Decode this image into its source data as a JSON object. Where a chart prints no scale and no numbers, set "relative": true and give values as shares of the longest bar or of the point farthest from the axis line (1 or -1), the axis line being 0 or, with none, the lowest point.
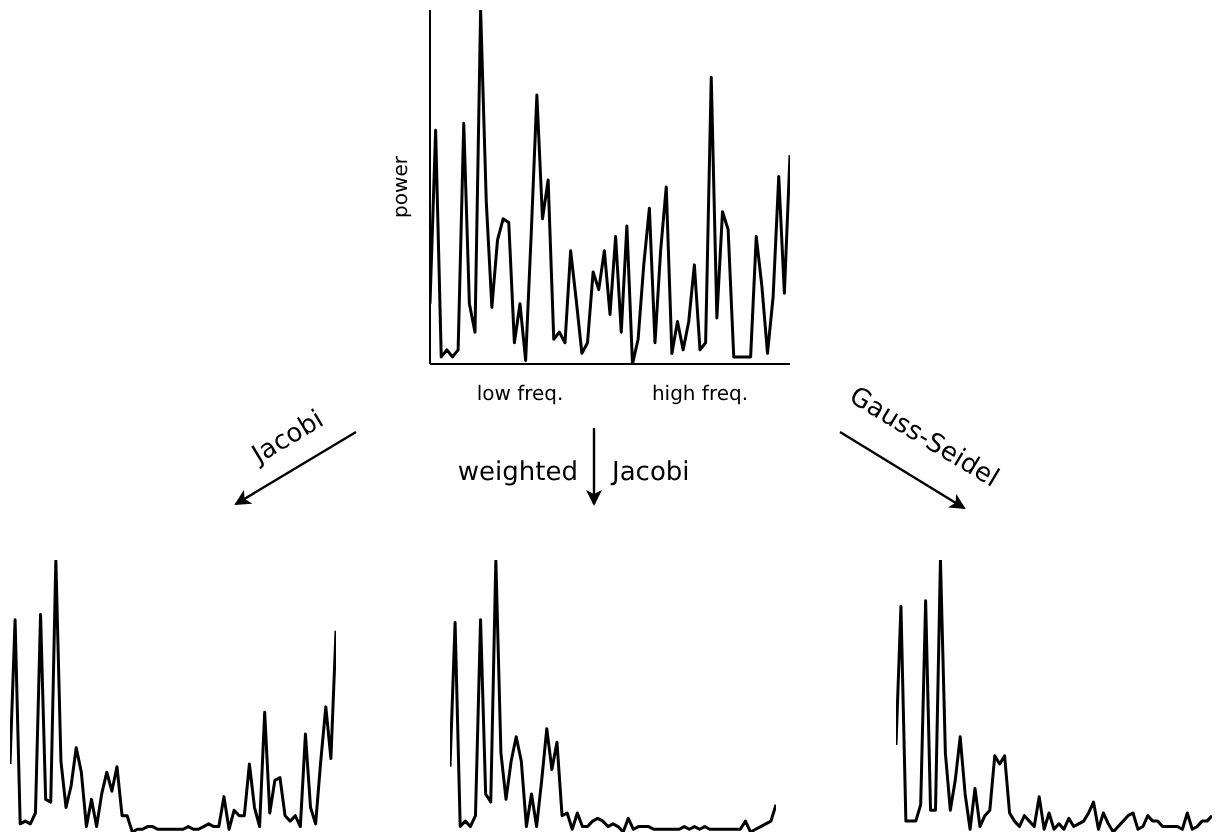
{
  "chart_data": [
    {
      "type": "line",
      "relative": true,
      "ylabel": "power",
      "annotations": [
        "low freq.",
        "high freq."
      ],
      "color": "#000000",
      "marker": "none",
      "categories": [
        null,
        null,
        null,
        null,
        null,
        null,
        null,
        null,
        null,
        null,
        null,
        null,
        null,
        null,
        null,
        null,
        null,
        null,
        null,
        null,
        null,
        null,
        null,
        null,
        null,
        null,
        null,
        null,
        null,
        null,
        null,
        null,
        null,
        null,
        null,
        null,
        null,
        null,
        null,
        null,
        null,
        null,
        null,
        null,
        null,
        null,
        null,
        null,
        null,
        null,
        null,
        null,
        null,
        null,
        null,
        null,
        null,
        null,
        null,
        null,
        null,
        null,
        null,
        null,
        null
      ],
      "values": [
        0.17,
        0.66,
        0.02,
        0.04,
        0.02,
        0.04,
        0.68,
        0.17,
        0.09,
        1.0,
        0.46,
        0.16,
        0.35,
        0.41,
        0.4,
        0.06,
        0.17,
        0.01,
        0.37,
        0.76,
        0.41,
        0.52,
        0.07,
        0.09,
        0.06,
        0.32,
        0.18,
        0.03,
        0.06,
        0.26,
        0.21,
        0.32,
        0.14,
        0.36,
        0.09,
        0.39,
        0.0,
        0.07,
        0.28,
        0.44,
        0.06,
        0.32,
        0.5,
        0.03,
        0.12,
        0.04,
        0.12,
        0.28,
        0.04,
        0.06,
        0.81,
        0.13,
        0.43,
        0.38,
        0.02,
        0.02,
        0.02,
        0.02,
        0.36,
        0.22,
        0.03,
        0.19,
        0.53,
        0.2,
        0.59
      ]
    },
    {
      "type": "line",
      "relative": true,
      "annotations": [
        "Jacobi"
      ],
      "color": "#000000",
      "marker": "none",
      "categories": [
        null,
        null,
        null,
        null,
        null,
        null,
        null,
        null,
        null,
        null,
        null,
        null,
        null,
        null,
        null,
        null,
        null,
        null,
        null,
        null,
        null,
        null,
        null,
        null,
        null,
        null,
        null,
        null,
        null,
        null,
        null,
        null,
        null,
        null,
        null,
        null,
        null,
        null,
        null,
        null,
        null,
        null,
        null,
        null,
        null,
        null,
        null,
        null,
        null,
        null,
        null,
        null,
        null,
        null,
        null,
        null,
        null,
        null,
        null,
        null,
        null,
        null,
        null,
        null,
        null
      ],
      "values": [
        0.25,
        0.78,
        0.03,
        0.04,
        0.03,
        0.07,
        0.8,
        0.12,
        0.11,
        1.0,
        0.26,
        0.09,
        0.17,
        0.31,
        0.22,
        0.02,
        0.12,
        0.02,
        0.14,
        0.22,
        0.15,
        0.24,
        0.06,
        0.06,
        0.0,
        0.01,
        0.01,
        0.02,
        0.02,
        0.01,
        0.01,
        0.01,
        0.01,
        0.01,
        0.01,
        0.02,
        0.01,
        0.01,
        0.02,
        0.03,
        0.02,
        0.02,
        0.13,
        0.01,
        0.08,
        0.06,
        0.06,
        0.25,
        0.09,
        0.02,
        0.44,
        0.07,
        0.19,
        0.2,
        0.06,
        0.04,
        0.06,
        0.02,
        0.36,
        0.09,
        0.03,
        0.26,
        0.46,
        0.27,
        0.74
      ]
    },
    {
      "type": "line",
      "relative": true,
      "annotations": [
        "weighted",
        "Jacobi"
      ],
      "color": "#000000",
      "marker": "none",
      "categories": [
        null,
        null,
        null,
        null,
        null,
        null,
        null,
        null,
        null,
        null,
        null,
        null,
        null,
        null,
        null,
        null,
        null,
        null,
        null,
        null,
        null,
        null,
        null,
        null,
        null,
        null,
        null,
        null,
        null,
        null,
        null,
        null,
        null,
        null,
        null,
        null,
        null,
        null,
        null,
        null,
        null,
        null,
        null,
        null,
        null,
        null,
        null,
        null,
        null,
        null,
        null,
        null,
        null,
        null,
        null,
        null,
        null,
        null,
        null,
        null,
        null,
        null,
        null,
        null,
        null
      ],
      "values": [
        0.24,
        0.77,
        0.02,
        0.04,
        0.02,
        0.06,
        0.78,
        0.14,
        0.11,
        1.0,
        0.29,
        0.12,
        0.26,
        0.35,
        0.26,
        0.02,
        0.14,
        0.02,
        0.19,
        0.38,
        0.23,
        0.33,
        0.06,
        0.07,
        0.01,
        0.07,
        0.02,
        0.02,
        0.04,
        0.05,
        0.04,
        0.02,
        0.03,
        0.02,
        0.0,
        0.05,
        0.01,
        0.02,
        0.02,
        0.02,
        0.01,
        0.01,
        0.01,
        0.01,
        0.01,
        0.01,
        0.02,
        0.01,
        0.02,
        0.01,
        0.02,
        0.01,
        0.01,
        0.01,
        0.01,
        0.01,
        0.01,
        0.01,
        0.04,
        0.0,
        0.01,
        0.02,
        0.03,
        0.04,
        0.1
      ]
    },
    {
      "type": "line",
      "relative": true,
      "annotations": [
        "Gauss-Seidel"
      ],
      "color": "#000000",
      "marker": "none",
      "categories": [
        null,
        null,
        null,
        null,
        null,
        null,
        null,
        null,
        null,
        null,
        null,
        null,
        null,
        null,
        null,
        null,
        null,
        null,
        null,
        null,
        null,
        null,
        null,
        null,
        null,
        null,
        null,
        null,
        null,
        null,
        null,
        null,
        null,
        null,
        null,
        null,
        null,
        null,
        null,
        null,
        null,
        null,
        null,
        null,
        null,
        null,
        null,
        null,
        null,
        null,
        null,
        null,
        null,
        null,
        null,
        null,
        null,
        null,
        null,
        null,
        null,
        null,
        null,
        null,
        null
      ],
      "values": [
        0.32,
        0.83,
        0.04,
        0.04,
        0.04,
        0.1,
        0.85,
        0.08,
        0.08,
        1.0,
        0.29,
        0.08,
        0.19,
        0.35,
        0.14,
        0.01,
        0.16,
        0.02,
        0.06,
        0.08,
        0.28,
        0.25,
        0.28,
        0.07,
        0.04,
        0.02,
        0.06,
        0.04,
        0.02,
        0.13,
        0.01,
        0.07,
        0.01,
        0.03,
        0.01,
        0.05,
        0.02,
        0.03,
        0.04,
        0.07,
        0.11,
        0.01,
        0.07,
        0.03,
        0.0,
        0.02,
        0.04,
        0.06,
        0.07,
        0.01,
        0.02,
        0.06,
        0.04,
        0.04,
        0.02,
        0.02,
        0.02,
        0.02,
        0.01,
        0.07,
        0.01,
        0.02,
        0.04,
        0.04,
        0.06
      ]
    }
  ]
}
